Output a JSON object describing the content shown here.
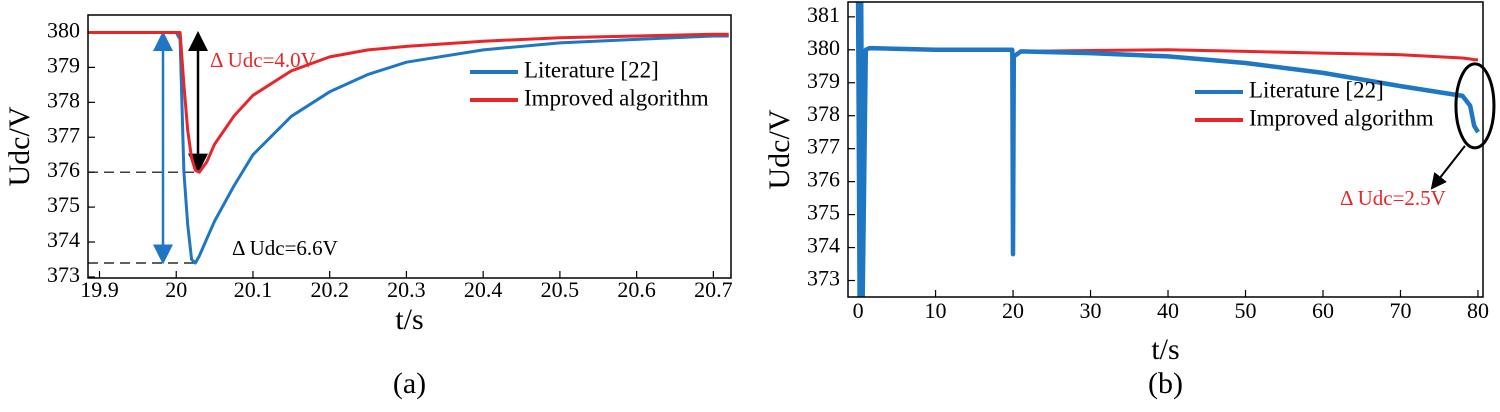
{
  "chart_data": [
    {
      "type": "line",
      "caption": "(a)",
      "xlabel": "t/s",
      "ylabel": "Udc/V",
      "x": [
        19.885,
        19.9,
        19.95,
        20.0,
        20.005,
        20.01,
        20.015,
        20.02,
        20.025,
        20.03,
        20.04,
        20.05,
        20.075,
        20.1,
        20.15,
        20.2,
        20.25,
        20.3,
        20.4,
        20.5,
        20.6,
        20.7,
        20.72
      ],
      "series": [
        {
          "name": "Literature [22]",
          "color": "#1f77c4",
          "values": [
            380,
            380,
            380,
            380,
            379.8,
            376,
            374.5,
            373.5,
            373.4,
            373.6,
            374.1,
            374.6,
            375.6,
            376.5,
            377.6,
            378.3,
            378.8,
            379.15,
            379.5,
            379.7,
            379.8,
            379.9,
            379.9
          ]
        },
        {
          "name": "Improved algorithm",
          "color": "#e8262a",
          "values": [
            380,
            380,
            380,
            380,
            380,
            378.5,
            377.2,
            376.4,
            376.05,
            376.0,
            376.3,
            376.8,
            377.6,
            378.2,
            378.9,
            379.3,
            379.5,
            379.6,
            379.75,
            379.85,
            379.9,
            379.95,
            379.95
          ]
        }
      ],
      "annotations": [
        {
          "text": "Δ Udc=4.0V",
          "color": "#e8262a"
        },
        {
          "text": "Δ Udc=6.6V",
          "color": "#000000"
        }
      ],
      "xlim": [
        19.885,
        20.723
      ],
      "ylim": [
        372.97,
        380.5
      ],
      "xticks": [
        19.9,
        20,
        20.1,
        20.2,
        20.3,
        20.4,
        20.5,
        20.6,
        20.7
      ],
      "yticks": [
        373,
        374,
        375,
        376,
        377,
        378,
        379,
        380
      ],
      "legend": "upper right"
    },
    {
      "type": "line",
      "caption": "(b)",
      "xlabel": "t/s",
      "ylabel": "Udc/V",
      "x": [
        0,
        0.2,
        0.4,
        0.6,
        1,
        1.5,
        10,
        19.9,
        20,
        20.1,
        21,
        30,
        40,
        50,
        60,
        70,
        78,
        79,
        79.5,
        80
      ],
      "series": [
        {
          "name": "Literature [22]",
          "color": "#1f77c4",
          "values": [
            381.45,
            372.5,
            381.45,
            372.5,
            380,
            380.05,
            380,
            380,
            373.8,
            379.8,
            379.95,
            379.9,
            379.8,
            379.6,
            379.3,
            378.9,
            378.6,
            378.3,
            377.7,
            377.5
          ]
        },
        {
          "name": "Improved algorithm",
          "color": "#e8262a",
          "values": [
            381.45,
            372.5,
            381.45,
            372.5,
            380,
            380.05,
            380,
            380,
            373.8,
            379.8,
            379.95,
            379.98,
            380,
            379.95,
            379.9,
            379.85,
            379.75,
            379.72,
            379.7,
            379.7
          ]
        }
      ],
      "annotations": [
        {
          "text": "Δ Udc=2.5V",
          "color": "#e8262a"
        }
      ],
      "xlim": [
        -1.3,
        80.65
      ],
      "ylim": [
        372.5,
        381.45
      ],
      "xticks": [
        0,
        10,
        20,
        30,
        40,
        50,
        60,
        70,
        80
      ],
      "yticks": [
        373,
        374,
        375,
        376,
        377,
        378,
        379,
        380,
        381
      ],
      "legend": "upper right"
    }
  ]
}
